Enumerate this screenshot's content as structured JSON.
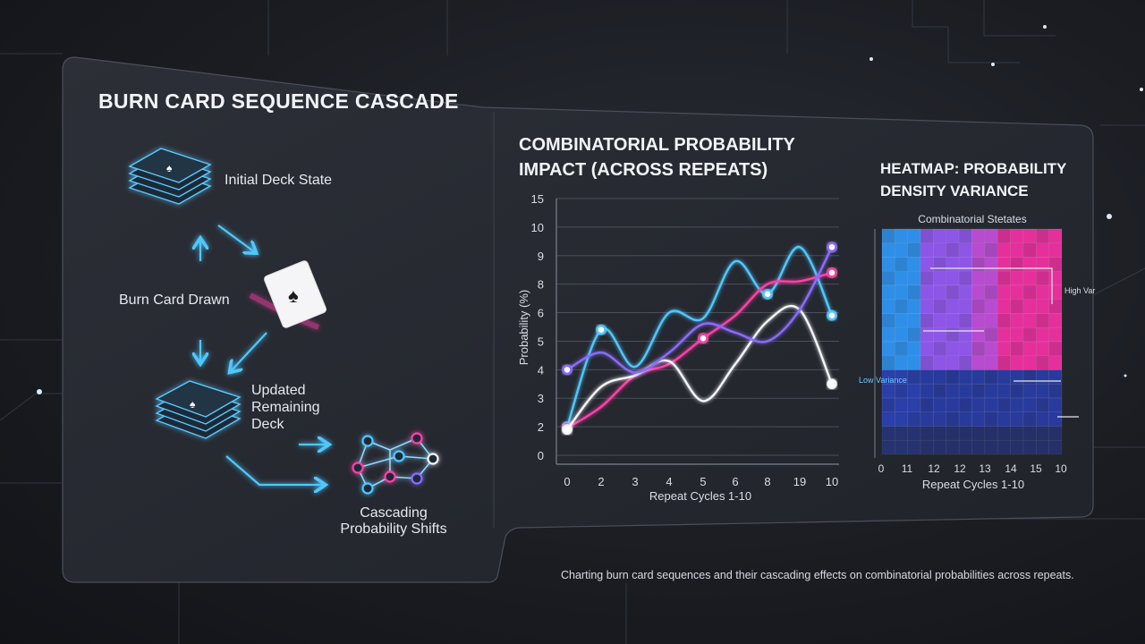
{
  "flow": {
    "title": "BURN CARD SEQUENCE CASCADE",
    "steps": {
      "initial": "Initial Deck State",
      "burn": "Burn Card Drawn",
      "updated_1": "Updated",
      "updated_2": "Remaining",
      "updated_3": "Deck",
      "cascade_1": "Cascading",
      "cascade_2": "Probability Shifts"
    }
  },
  "line_chart": {
    "title_1": "COMBINATORIAL PROBABILITY",
    "title_2": "IMPACT (ACROSS REPEATS)"
  },
  "heatmap_panel": {
    "title_1": "HEATMAP: PROBABILITY",
    "title_2": "DENSITY VARIANCE"
  },
  "caption": "Charting burn card sequences and their cascading effects on combinatorial probabilities across repeats.",
  "colors": {
    "cyan": "#4fc8ff",
    "magenta": "#ff3fa8",
    "white": "#f4f6fa",
    "violet": "#8a6cff",
    "blue": "#3e63e8",
    "panel": "#24272e"
  },
  "chart_data": [
    {
      "type": "line",
      "xlabel": "Repeat Cycles 1-10",
      "ylabel": "Probability (%)",
      "x_tick_labels": [
        "0",
        "2",
        "3",
        "4",
        "5",
        "6",
        "8",
        "19",
        "10"
      ],
      "y_tick_labels": [
        "0",
        "2",
        "3",
        "4",
        "5",
        "6",
        "8",
        "9",
        "10",
        "15"
      ],
      "grid": true,
      "series": [
        {
          "color": "#4fc8ff",
          "values": [
            2.0,
            5.4,
            4.1,
            6.0,
            5.8,
            8.8,
            7.3,
            9.3,
            5.9
          ]
        },
        {
          "color": "#ff3fa8",
          "values": [
            1.9,
            2.7,
            3.8,
            4.2,
            5.1,
            5.9,
            8.0,
            8.1,
            8.4
          ]
        },
        {
          "color": "#f4f6fa",
          "values": [
            1.8,
            3.4,
            3.8,
            4.3,
            2.9,
            4.2,
            5.7,
            6.2,
            3.5
          ]
        },
        {
          "color": "#8a6cff",
          "values": [
            4.0,
            4.6,
            3.9,
            4.6,
            5.6,
            5.3,
            5.0,
            6.2,
            9.3
          ]
        }
      ]
    },
    {
      "type": "heatmap",
      "title": "Combinatorial Stetates",
      "xlabel": "Repeat Cycles 1-10",
      "x_tick_labels": [
        "0",
        "11",
        "12",
        "12",
        "13",
        "14",
        "15",
        "10"
      ],
      "annotations": [
        "High Var",
        "Low Variance"
      ],
      "color_scale": [
        "#2f7fe6",
        "#8a5cf0",
        "#e8339a",
        "#28358f"
      ],
      "zones": [
        {
          "name": "low-left",
          "color": "#2f8fe8"
        },
        {
          "name": "mid",
          "color": "#8e56e6"
        },
        {
          "name": "high-right",
          "color": "#e5309c"
        },
        {
          "name": "bottom",
          "color": "#283a9c"
        }
      ]
    }
  ]
}
